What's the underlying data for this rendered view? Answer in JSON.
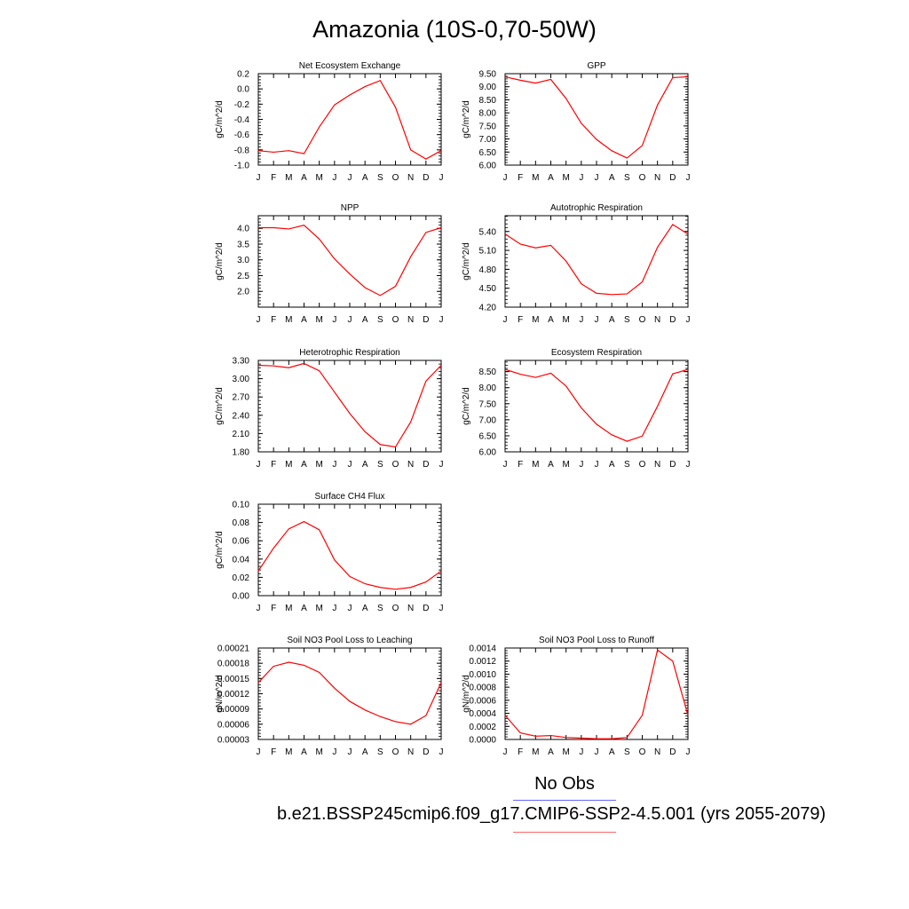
{
  "title": "Amazonia (10S-0,70-50W)",
  "legend": {
    "obs_label": "No Obs",
    "run_label": "b.e21.BSSP245cmip6.f09_g17.CMIP6-SSP2-4.5.001 (yrs 2055-2079)",
    "obs_color": "#6666ff",
    "model_color": "#ff6666"
  },
  "chart_data": [
    {
      "type": "line",
      "title": "Net Ecosystem Exchange",
      "ylabel": "gC/m^2/d",
      "categories": [
        "J",
        "F",
        "M",
        "A",
        "M",
        "J",
        "J",
        "A",
        "S",
        "O",
        "N",
        "D",
        "J"
      ],
      "ylim": [
        -1.0,
        0.2
      ],
      "yticks": [
        "0.2",
        "0.0",
        "-0.2",
        "-0.4",
        "-0.6",
        "-0.8",
        "-1.0"
      ],
      "yticks_val": [
        0.2,
        0.0,
        -0.2,
        -0.4,
        -0.6,
        -0.8,
        -1.0
      ],
      "values": [
        -0.81,
        -0.83,
        -0.81,
        -0.85,
        -0.5,
        -0.21,
        -0.08,
        0.03,
        0.11,
        -0.24,
        -0.8,
        -0.92,
        -0.81
      ],
      "color": "#ff0000"
    },
    {
      "type": "line",
      "title": "GPP",
      "ylabel": "gC/m^2/d",
      "categories": [
        "J",
        "F",
        "M",
        "A",
        "M",
        "J",
        "J",
        "A",
        "S",
        "O",
        "N",
        "D",
        "J"
      ],
      "ylim": [
        6.0,
        9.5
      ],
      "yticks": [
        "9.50",
        "9.00",
        "8.50",
        "8.00",
        "7.50",
        "7.00",
        "6.50",
        "6.00"
      ],
      "yticks_val": [
        9.5,
        9.0,
        8.5,
        8.0,
        7.5,
        7.0,
        6.5,
        6.0
      ],
      "values": [
        9.38,
        9.25,
        9.14,
        9.28,
        8.55,
        7.6,
        6.98,
        6.55,
        6.27,
        6.75,
        8.3,
        9.35,
        9.38
      ],
      "color": "#ff0000"
    },
    {
      "type": "line",
      "title": "NPP",
      "ylabel": "gC/m^2/d",
      "categories": [
        "J",
        "F",
        "M",
        "A",
        "M",
        "J",
        "J",
        "A",
        "S",
        "O",
        "N",
        "D",
        "J"
      ],
      "ylim": [
        1.5,
        4.4
      ],
      "yticks": [
        "4.0",
        "3.5",
        "3.0",
        "2.5",
        "2.0"
      ],
      "yticks_val": [
        4.0,
        3.5,
        3.0,
        2.5,
        2.0
      ],
      "values": [
        4.02,
        4.02,
        3.98,
        4.1,
        3.66,
        3.03,
        2.55,
        2.12,
        1.87,
        2.16,
        3.1,
        3.87,
        4.02
      ],
      "color": "#ff0000"
    },
    {
      "type": "line",
      "title": "Autotrophic Respiration",
      "ylabel": "gC/m^2/d",
      "categories": [
        "J",
        "F",
        "M",
        "A",
        "M",
        "J",
        "J",
        "A",
        "S",
        "O",
        "N",
        "D",
        "J"
      ],
      "ylim": [
        4.2,
        5.65
      ],
      "yticks": [
        "5.40",
        "5.10",
        "4.80",
        "4.50",
        "4.20"
      ],
      "yticks_val": [
        5.4,
        5.1,
        4.8,
        4.5,
        4.2
      ],
      "values": [
        5.36,
        5.2,
        5.14,
        5.18,
        4.93,
        4.57,
        4.42,
        4.4,
        4.41,
        4.6,
        5.15,
        5.51,
        5.36
      ],
      "color": "#ff0000"
    },
    {
      "type": "line",
      "title": "Heterotrophic Respiration",
      "ylabel": "gC/m^2/d",
      "categories": [
        "J",
        "F",
        "M",
        "A",
        "M",
        "J",
        "J",
        "A",
        "S",
        "O",
        "N",
        "D",
        "J"
      ],
      "ylim": [
        1.8,
        3.3
      ],
      "yticks": [
        "3.30",
        "3.00",
        "2.70",
        "2.40",
        "2.10",
        "1.80"
      ],
      "yticks_val": [
        3.3,
        3.0,
        2.7,
        2.4,
        2.1,
        1.8
      ],
      "values": [
        3.22,
        3.21,
        3.18,
        3.25,
        3.13,
        2.78,
        2.43,
        2.13,
        1.92,
        1.88,
        2.29,
        2.96,
        3.22
      ],
      "color": "#ff0000"
    },
    {
      "type": "line",
      "title": "Ecosystem Respiration",
      "ylabel": "gC/m^2/d",
      "categories": [
        "J",
        "F",
        "M",
        "A",
        "M",
        "J",
        "J",
        "A",
        "S",
        "O",
        "N",
        "D",
        "J"
      ],
      "ylim": [
        6.0,
        8.85
      ],
      "yticks": [
        "8.50",
        "8.00",
        "7.50",
        "7.00",
        "6.50",
        "6.00"
      ],
      "yticks_val": [
        8.5,
        8.0,
        7.5,
        7.0,
        6.5,
        6.0
      ],
      "values": [
        8.57,
        8.42,
        8.32,
        8.45,
        8.05,
        7.37,
        6.86,
        6.53,
        6.33,
        6.49,
        7.42,
        8.43,
        8.57
      ],
      "color": "#ff0000"
    },
    {
      "type": "line",
      "title": "Surface CH4 Flux",
      "ylabel": "gC/m^2/d",
      "categories": [
        "J",
        "F",
        "M",
        "A",
        "M",
        "J",
        "J",
        "A",
        "S",
        "O",
        "N",
        "D",
        "J"
      ],
      "ylim": [
        0.0,
        0.1
      ],
      "yticks": [
        "0.10",
        "0.08",
        "0.06",
        "0.04",
        "0.02",
        "0.00"
      ],
      "yticks_val": [
        0.1,
        0.08,
        0.06,
        0.04,
        0.02,
        0.0
      ],
      "values": [
        0.027,
        0.052,
        0.073,
        0.081,
        0.072,
        0.039,
        0.021,
        0.013,
        0.009,
        0.007,
        0.009,
        0.015,
        0.027
      ],
      "color": "#ff0000"
    },
    {
      "type": "line",
      "title": "Soil NO3 Pool Loss to Leaching",
      "ylabel": "gN/m^2/d",
      "categories": [
        "J",
        "F",
        "M",
        "A",
        "M",
        "J",
        "J",
        "A",
        "S",
        "O",
        "N",
        "D",
        "J"
      ],
      "ylim": [
        3e-05,
        0.00021
      ],
      "yticks": [
        "0.00021",
        "0.00018",
        "0.00015",
        "0.00012",
        "0.00009",
        "0.00006",
        "0.00003"
      ],
      "yticks_val": [
        0.00021,
        0.00018,
        0.00015,
        0.00012,
        9e-05,
        6e-05,
        3e-05
      ],
      "values": [
        0.000142,
        0.000174,
        0.000182,
        0.000176,
        0.000162,
        0.000131,
        0.000105,
        8.8e-05,
        7.5e-05,
        6.5e-05,
        6e-05,
        7.7e-05,
        0.000142
      ],
      "color": "#ff0000"
    },
    {
      "type": "line",
      "title": "Soil NO3 Pool Loss to Runoff",
      "ylabel": "gN/m^2/d",
      "categories": [
        "J",
        "F",
        "M",
        "A",
        "M",
        "J",
        "J",
        "A",
        "S",
        "O",
        "N",
        "D",
        "J"
      ],
      "ylim": [
        0.0,
        0.0014
      ],
      "yticks": [
        "0.0014",
        "0.0012",
        "0.0010",
        "0.0008",
        "0.0006",
        "0.0004",
        "0.0002",
        "0.0000"
      ],
      "yticks_val": [
        0.0014,
        0.0012,
        0.001,
        0.0008,
        0.0006,
        0.0004,
        0.0002,
        0.0
      ],
      "values": [
        0.00037,
        0.0001,
        5e-05,
        6e-05,
        3e-05,
        2e-05,
        1e-05,
        1e-05,
        3e-05,
        0.00037,
        0.00137,
        0.0012,
        0.00037
      ],
      "color": "#ff0000"
    }
  ]
}
